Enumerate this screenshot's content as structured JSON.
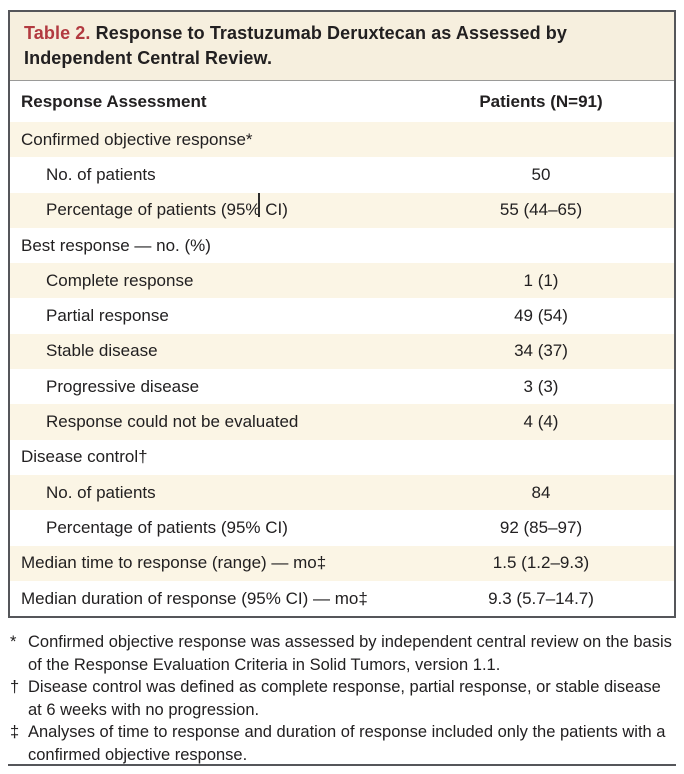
{
  "table": {
    "label": "Table 2.",
    "title": "Response to Trastuzumab Deruxtecan as Assessed by Independent Central Review.",
    "columns": [
      "Response Assessment",
      "Patients (N=91)"
    ],
    "rows": [
      {
        "label": "Confirmed objective response*",
        "value": "",
        "indent": 0,
        "shaded": true
      },
      {
        "label": "No. of patients",
        "value": "50",
        "indent": 1,
        "shaded": false
      },
      {
        "label": "Percentage of patients (95% CI)",
        "value": "55 (44–65)",
        "indent": 1,
        "shaded": true
      },
      {
        "label": "Best response — no. (%)",
        "value": "",
        "indent": 0,
        "shaded": false
      },
      {
        "label": "Complete response",
        "value": "1 (1)",
        "indent": 1,
        "shaded": true
      },
      {
        "label": "Partial response",
        "value": "49 (54)",
        "indent": 1,
        "shaded": false
      },
      {
        "label": "Stable disease",
        "value": "34 (37)",
        "indent": 1,
        "shaded": true
      },
      {
        "label": "Progressive disease",
        "value": "3 (3)",
        "indent": 1,
        "shaded": false
      },
      {
        "label": "Response could not be evaluated",
        "value": "4 (4)",
        "indent": 1,
        "shaded": true
      },
      {
        "label": "Disease control†",
        "value": "",
        "indent": 0,
        "shaded": false
      },
      {
        "label": "No. of patients",
        "value": "84",
        "indent": 1,
        "shaded": true
      },
      {
        "label": "Percentage of patients (95% CI)",
        "value": "92 (85–97)",
        "indent": 1,
        "shaded": false
      },
      {
        "label": "Median time to response (range) — mo‡",
        "value": "1.5 (1.2–9.3)",
        "indent": 0,
        "shaded": true
      },
      {
        "label": "Median duration of response (95% CI) — mo‡",
        "value": "9.3 (5.7–14.7)",
        "indent": 0,
        "shaded": false
      }
    ]
  },
  "footnotes": [
    {
      "marker": "*",
      "text": "Confirmed objective response was assessed by independent central review on the basis of the Response Evaluation Criteria in Solid Tumors, version 1.1."
    },
    {
      "marker": "†",
      "text": "Disease control was defined as complete response, partial response, or stable disease at 6 weeks with no progression."
    },
    {
      "marker": "‡",
      "text": "Analyses of time to response and duration of response included only the patients with a confirmed objective response."
    }
  ],
  "icons": {
    "text_cursor": "i-beam-caret"
  },
  "colors": {
    "accent_red": "#b23a40",
    "title_band": "#f6efde",
    "row_shade": "#fbf5e5",
    "border": "#55565a",
    "text": "#222021"
  }
}
